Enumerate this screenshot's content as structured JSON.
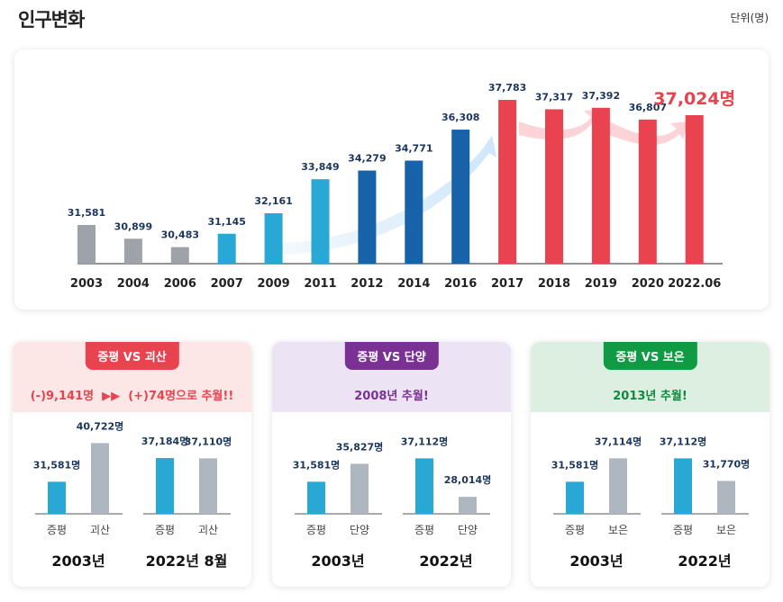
{
  "header": {
    "title": "인구변화",
    "unit": "단위(명)"
  },
  "colors": {
    "gray": "#9ea3a9",
    "light_blue": "#2aa8d5",
    "dark_blue": "#1762a9",
    "red": "#e8434f",
    "axis": "#555"
  },
  "chart_data": [
    {
      "type": "bar",
      "categories": [
        "2003",
        "2004",
        "2006",
        "2007",
        "2009",
        "2011",
        "2012",
        "2014",
        "2016",
        "2017",
        "2018",
        "2019",
        "2020",
        "2022.06"
      ],
      "values": [
        31581,
        30899,
        30483,
        31145,
        32161,
        33849,
        34279,
        34771,
        36308,
        37783,
        37317,
        37392,
        36807,
        37024
      ],
      "labels": [
        "31,581",
        "30,899",
        "30,483",
        "31,145",
        "32,161",
        "33,849",
        "34,279",
        "34,771",
        "36,308",
        "37,783",
        "37,317",
        "37,392",
        "36,807",
        "37,024명"
      ],
      "bar_colors": [
        "gray",
        "gray",
        "gray",
        "light_blue",
        "light_blue",
        "light_blue",
        "dark_blue",
        "dark_blue",
        "dark_blue",
        "red",
        "red",
        "red",
        "red",
        "red"
      ]
    },
    {
      "type": "bar",
      "badge": "증평 VS 괴산",
      "note_parts": [
        "(-)9,141명",
        "▶▶",
        "(+)74명으로 추월!!"
      ],
      "badge_color": "#e8434f",
      "head_bg": "#fde6e6",
      "note_color": "#e8434f",
      "groups": [
        {
          "label": "2003년",
          "bars": [
            {
              "name": "증평",
              "value": 31581,
              "label": "31,581명"
            },
            {
              "name": "괴산",
              "value": 40722,
              "label": "40,722명"
            }
          ]
        },
        {
          "label": "2022년 8월",
          "bars": [
            {
              "name": "증평",
              "value": 37184,
              "label": "37,184명"
            },
            {
              "name": "괴산",
              "value": 37110,
              "label": "37,110명"
            }
          ]
        }
      ]
    },
    {
      "type": "bar",
      "badge": "증평 VS 단양",
      "note_parts": [
        "2008년 추월!"
      ],
      "badge_color": "#7b3193",
      "head_bg": "#ece3f5",
      "note_color": "#7b3193",
      "groups": [
        {
          "label": "2003년",
          "bars": [
            {
              "name": "증평",
              "value": 31581,
              "label": "31,581명"
            },
            {
              "name": "단양",
              "value": 35827,
              "label": "35,827명"
            }
          ]
        },
        {
          "label": "2022년",
          "bars": [
            {
              "name": "증평",
              "value": 37112,
              "label": "37,112명"
            },
            {
              "name": "단양",
              "value": 28014,
              "label": "28,014명"
            }
          ]
        }
      ]
    },
    {
      "type": "bar",
      "badge": "증평 VS 보은",
      "note_parts": [
        "2013년 추월!"
      ],
      "badge_color": "#0f9a43",
      "head_bg": "#dcefe0",
      "note_color": "#0f8a3c",
      "groups": [
        {
          "label": "2003년",
          "bars": [
            {
              "name": "증평",
              "value": 31581,
              "label": "31,581명"
            },
            {
              "name": "보은",
              "value": 37114,
              "label": "37,114명"
            }
          ]
        },
        {
          "label": "2022년",
          "bars": [
            {
              "name": "증평",
              "value": 37112,
              "label": "37,112명"
            },
            {
              "name": "보은",
              "value": 31770,
              "label": "31,770명"
            }
          ]
        }
      ]
    }
  ]
}
